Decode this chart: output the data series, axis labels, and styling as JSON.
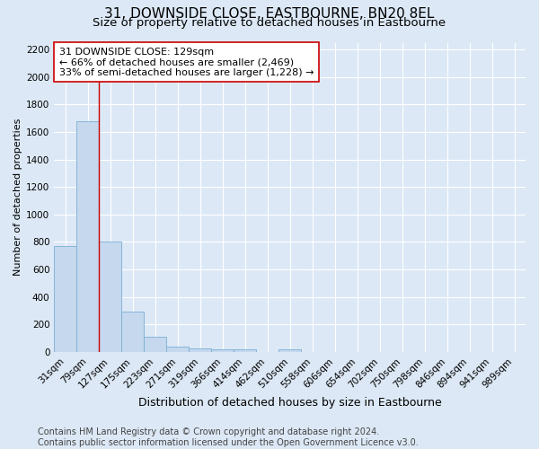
{
  "title": "31, DOWNSIDE CLOSE, EASTBOURNE, BN20 8EL",
  "subtitle": "Size of property relative to detached houses in Eastbourne",
  "xlabel": "Distribution of detached houses by size in Eastbourne",
  "ylabel": "Number of detached properties",
  "bin_labels": [
    "31sqm",
    "79sqm",
    "127sqm",
    "175sqm",
    "223sqm",
    "271sqm",
    "319sqm",
    "366sqm",
    "414sqm",
    "462sqm",
    "510sqm",
    "558sqm",
    "606sqm",
    "654sqm",
    "702sqm",
    "750sqm",
    "798sqm",
    "846sqm",
    "894sqm",
    "941sqm",
    "989sqm"
  ],
  "bar_values": [
    770,
    1680,
    800,
    295,
    110,
    40,
    28,
    22,
    20,
    0,
    22,
    0,
    0,
    0,
    0,
    0,
    0,
    0,
    0,
    0,
    0
  ],
  "bar_color": "#c5d8ee",
  "bar_edge_color": "#7bafd4",
  "property_line_index": 2,
  "property_line_color": "#cc0000",
  "annotation_line1": "31 DOWNSIDE CLOSE: 129sqm",
  "annotation_line2": "← 66% of detached houses are smaller (2,469)",
  "annotation_line3": "33% of semi-detached houses are larger (1,228) →",
  "annotation_box_color": "#ffffff",
  "annotation_box_edge": "#cc0000",
  "ylim": [
    0,
    2250
  ],
  "yticks": [
    0,
    200,
    400,
    600,
    800,
    1000,
    1200,
    1400,
    1600,
    1800,
    2000,
    2200
  ],
  "background_color": "#dce8f5",
  "plot_bg_color": "#dce8f5",
  "grid_color": "#ffffff",
  "footer_text": "Contains HM Land Registry data © Crown copyright and database right 2024.\nContains public sector information licensed under the Open Government Licence v3.0.",
  "title_fontsize": 11,
  "subtitle_fontsize": 9.5,
  "ylabel_fontsize": 8,
  "xlabel_fontsize": 9,
  "tick_fontsize": 7.5,
  "annotation_fontsize": 8,
  "footer_fontsize": 7
}
